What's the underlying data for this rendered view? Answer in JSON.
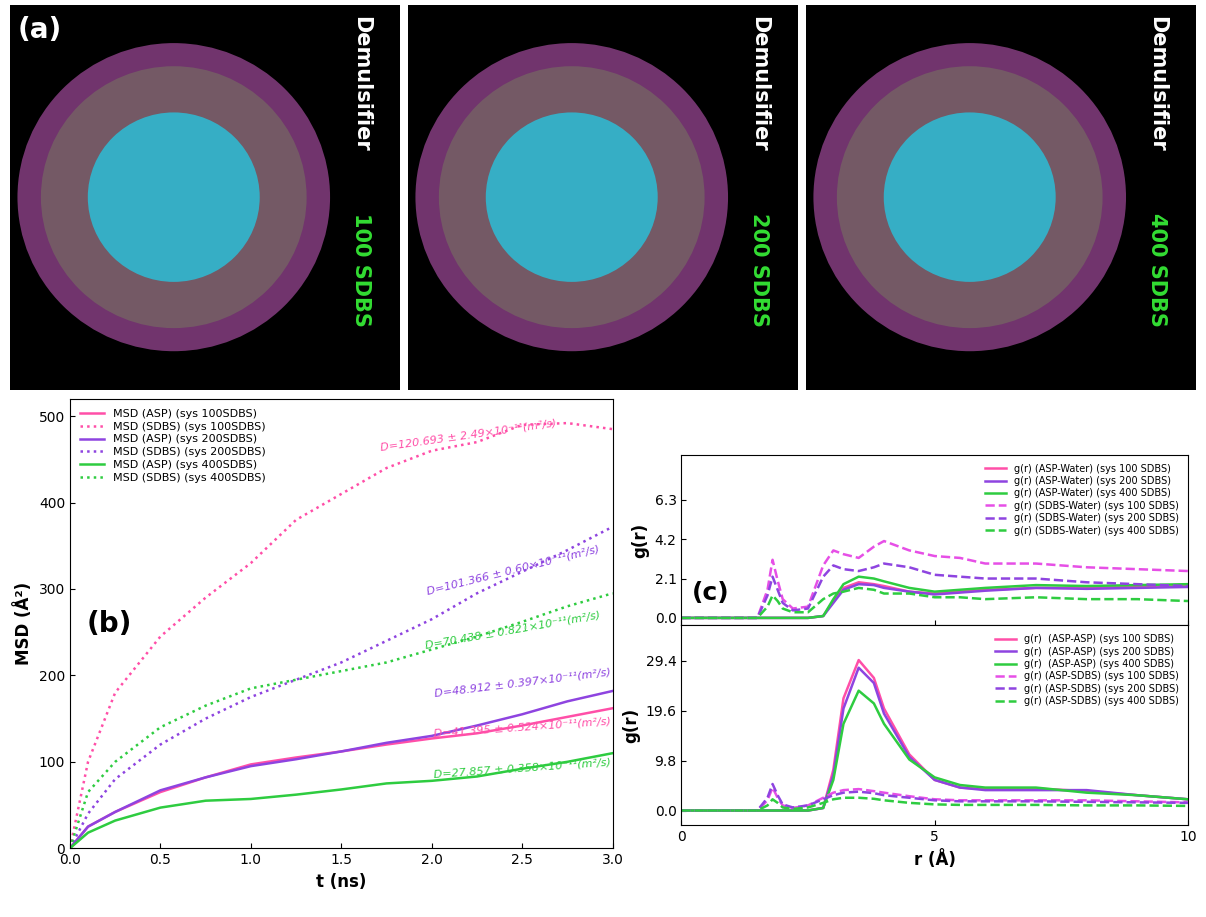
{
  "panel_a": {
    "label": "(a)",
    "images": [
      {
        "caption": [
          "Demulsifier",
          "100 SDBS"
        ]
      },
      {
        "caption": [
          "Demulsifier",
          "200 SDBS"
        ]
      },
      {
        "caption": [
          "Demulsifier",
          "400 SDBS"
        ]
      }
    ]
  },
  "chart_data": [
    {
      "type": "line",
      "panel_label": "(b)",
      "x_label": "t (ns)",
      "y_label": "MSD (Å²)",
      "xlim": [
        0,
        3
      ],
      "ylim": [
        0,
        520
      ],
      "xticks": [
        0.0,
        0.5,
        1.0,
        1.5,
        2.0,
        2.5,
        3.0
      ],
      "yticks": [
        0,
        100,
        200,
        300,
        400,
        500
      ],
      "legend": "upper left",
      "x": [
        0,
        0.1,
        0.25,
        0.5,
        0.75,
        1.0,
        1.25,
        1.5,
        1.75,
        2.0,
        2.25,
        2.5,
        2.75,
        3.0
      ],
      "series": [
        {
          "name": "MSD (ASP) (sys 100SDBS)",
          "color": "#ff4fa8",
          "line_style": "solid",
          "values": [
            0,
            25,
            42,
            65,
            82,
            97,
            105,
            112,
            120,
            127,
            133,
            142,
            152,
            162
          ]
        },
        {
          "name": "MSD (SDBS) (sys 100SDBS)",
          "color": "#ff4fa8",
          "line_style": "dotted",
          "values": [
            0,
            100,
            180,
            245,
            290,
            330,
            380,
            410,
            440,
            460,
            470,
            490,
            492,
            485
          ]
        },
        {
          "name": "MSD (ASP) (sys 200SDBS)",
          "color": "#8e44e0",
          "line_style": "solid",
          "values": [
            0,
            25,
            42,
            67,
            82,
            95,
            103,
            112,
            122,
            130,
            142,
            155,
            170,
            182
          ]
        },
        {
          "name": "MSD (SDBS) (sys 200SDBS)",
          "color": "#8e44e0",
          "line_style": "dotted",
          "values": [
            0,
            40,
            80,
            120,
            150,
            175,
            195,
            215,
            240,
            265,
            295,
            320,
            345,
            372
          ]
        },
        {
          "name": "MSD (ASP) (sys 400SDBS)",
          "color": "#2ecc40",
          "line_style": "solid",
          "values": [
            0,
            18,
            32,
            47,
            55,
            57,
            62,
            68,
            75,
            78,
            83,
            92,
            100,
            110
          ]
        },
        {
          "name": "MSD (SDBS) (sys 400SDBS)",
          "color": "#2ecc40",
          "line_style": "dotted",
          "values": [
            0,
            65,
            100,
            140,
            165,
            185,
            195,
            205,
            215,
            230,
            245,
            262,
            280,
            295
          ]
        }
      ],
      "annotations": [
        {
          "text": "D=120.693 ± 2.49×10⁻¹¹(m²/s)",
          "color": "#ff4fa8"
        },
        {
          "text": "D=101.366 ± 0.60×10⁻¹¹(m²/s)",
          "color": "#8e44e0"
        },
        {
          "text": "D=70.438 ± 0.821×10⁻¹¹(m²/s)",
          "color": "#2ecc40"
        },
        {
          "text": "D=48.912 ± 0.397×10⁻¹¹(m²/s)",
          "color": "#8e44e0"
        },
        {
          "text": "D=41.395 ± 0.524×10⁻¹¹(m²/s)",
          "color": "#ff4fa8"
        },
        {
          "text": "D=27.857 ± 0.358×10⁻¹¹(m²/s)",
          "color": "#2ecc40"
        }
      ]
    },
    {
      "type": "line",
      "panel_label": "(c)",
      "y_label": "g(r)",
      "tick_labels": "y",
      "xlim": [
        0,
        10
      ],
      "ylim": [
        -0.4,
        8.7
      ],
      "xticks": [
        0,
        5,
        10
      ],
      "yticks": [
        0.0,
        2.1,
        4.2,
        6.3
      ],
      "legend": "upper right",
      "x": [
        0,
        1,
        1.5,
        1.7,
        1.8,
        1.9,
        2.0,
        2.2,
        2.5,
        2.8,
        3.0,
        3.2,
        3.5,
        3.8,
        4.0,
        4.5,
        5.0,
        5.5,
        6.0,
        7.0,
        8.0,
        9.0,
        10.0
      ],
      "series": [
        {
          "name": "g(r) (ASP-Water) (sys 100 SDBS)",
          "color": "#ff4fa8",
          "line_style": "solid",
          "values": [
            0,
            0,
            0,
            0,
            0,
            0,
            0,
            0,
            0,
            0.1,
            0.9,
            1.6,
            1.9,
            1.8,
            1.7,
            1.4,
            1.3,
            1.4,
            1.5,
            1.6,
            1.6,
            1.65,
            1.7
          ]
        },
        {
          "name": "g(r) (ASP-Water) (sys 200 SDBS)",
          "color": "#8e44e0",
          "line_style": "solid",
          "values": [
            0,
            0,
            0,
            0,
            0,
            0,
            0,
            0,
            0,
            0.1,
            0.8,
            1.5,
            1.8,
            1.75,
            1.6,
            1.4,
            1.25,
            1.35,
            1.45,
            1.6,
            1.55,
            1.6,
            1.65
          ]
        },
        {
          "name": "g(r) (ASP-Water) (sys 400 SDBS)",
          "color": "#2ecc40",
          "line_style": "solid",
          "values": [
            0,
            0,
            0,
            0,
            0,
            0,
            0,
            0,
            0,
            0.1,
            1.0,
            1.8,
            2.2,
            2.1,
            1.95,
            1.6,
            1.4,
            1.5,
            1.6,
            1.75,
            1.7,
            1.75,
            1.8
          ]
        },
        {
          "name": "g(r) (SDBS-Water) (sys 100 SDBS)",
          "color": "#e64fe6",
          "line_style": "dashed",
          "values": [
            0,
            0,
            0,
            1.5,
            3.1,
            2.0,
            1.0,
            0.5,
            0.6,
            2.8,
            3.6,
            3.4,
            3.2,
            3.8,
            4.1,
            3.6,
            3.3,
            3.2,
            2.9,
            2.9,
            2.7,
            2.6,
            2.5
          ]
        },
        {
          "name": "g(r) (SDBS-Water) (sys 200 SDBS)",
          "color": "#8e44e0",
          "line_style": "dashed",
          "values": [
            0,
            0,
            0,
            1.2,
            2.2,
            1.5,
            0.8,
            0.4,
            0.5,
            2.2,
            2.8,
            2.6,
            2.5,
            2.7,
            2.9,
            2.7,
            2.3,
            2.2,
            2.1,
            2.1,
            1.9,
            1.8,
            1.7
          ]
        },
        {
          "name": "g(r) (SDBS-Water) (sys 400 SDBS)",
          "color": "#2ecc40",
          "line_style": "dashed",
          "values": [
            0,
            0,
            0,
            0.6,
            1.2,
            0.9,
            0.5,
            0.3,
            0.3,
            1.0,
            1.3,
            1.4,
            1.6,
            1.5,
            1.3,
            1.3,
            1.1,
            1.1,
            1.0,
            1.1,
            1.0,
            1.0,
            0.9
          ]
        }
      ]
    },
    {
      "type": "line",
      "x_label": "r (Å)",
      "y_label": "g(r)",
      "xlim": [
        0,
        10
      ],
      "ylim": [
        -2.9,
        36.3
      ],
      "xticks": [
        0,
        5,
        10
      ],
      "yticks": [
        0.0,
        9.8,
        19.6,
        29.4
      ],
      "legend": "upper right",
      "x": [
        0,
        1,
        1.5,
        1.7,
        1.8,
        1.9,
        2.0,
        2.2,
        2.5,
        2.8,
        3.0,
        3.2,
        3.5,
        3.8,
        4.0,
        4.5,
        5.0,
        5.5,
        6.0,
        7.0,
        8.0,
        9.0,
        10.0
      ],
      "series": [
        {
          "name": "g(r)  (ASP-ASP) (sys 100 SDBS)",
          "color": "#ff4fa8",
          "line_style": "solid",
          "values": [
            0,
            0,
            0,
            0,
            0,
            0,
            0,
            0,
            0,
            0.5,
            8,
            22,
            29.5,
            26,
            20,
            11,
            6,
            4.5,
            4.2,
            4.3,
            3.8,
            3.0,
            2.2
          ]
        },
        {
          "name": "g(r)  (ASP-ASP) (sys 200 SDBS)",
          "color": "#8e44e0",
          "line_style": "solid",
          "values": [
            0,
            0,
            0,
            0,
            0,
            0,
            0,
            0,
            0,
            0.5,
            7,
            20,
            28,
            25,
            19,
            10.5,
            6,
            4.5,
            4.0,
            4.0,
            4.0,
            3.0,
            2.2
          ]
        },
        {
          "name": "g(r)  (ASP-ASP) (sys 400 SDBS)",
          "color": "#2ecc40",
          "line_style": "solid",
          "values": [
            0,
            0,
            0,
            0,
            0,
            0,
            0,
            0,
            0,
            0.5,
            6,
            17,
            23.5,
            21,
            17,
            10,
            6.5,
            5,
            4.5,
            4.5,
            3.5,
            3.0,
            2.2
          ]
        },
        {
          "name": "g(r) (ASP-SDBS) (sys 100 SDBS)",
          "color": "#e64fe6",
          "line_style": "dashed",
          "values": [
            0,
            0,
            0,
            2,
            4.5,
            2.5,
            1.0,
            0.5,
            1,
            2.5,
            3.5,
            4,
            4.2,
            3.8,
            3.5,
            2.8,
            2.2,
            2,
            2,
            2,
            2,
            1.8,
            1.6
          ]
        },
        {
          "name": "g(r) (ASP-SDBS) (sys 200 SDBS)",
          "color": "#8e44e0",
          "line_style": "dashed",
          "values": [
            0,
            0,
            0,
            2.5,
            5.2,
            3,
            1.2,
            0.6,
            1,
            2.2,
            3,
            3.5,
            3.7,
            3.4,
            3,
            2.5,
            2,
            1.8,
            1.8,
            1.8,
            1.7,
            1.6,
            1.5
          ]
        },
        {
          "name": "g(r) (ASP-SDBS) (sys 400 SDBS)",
          "color": "#2ecc40",
          "line_style": "dashed",
          "values": [
            0,
            0,
            0,
            1,
            2.2,
            1.5,
            0.6,
            0.3,
            0.6,
            1.5,
            2.2,
            2.5,
            2.5,
            2.3,
            2,
            1.5,
            1.2,
            1.1,
            1.1,
            1.1,
            1,
            1,
            0.9
          ]
        }
      ]
    }
  ]
}
